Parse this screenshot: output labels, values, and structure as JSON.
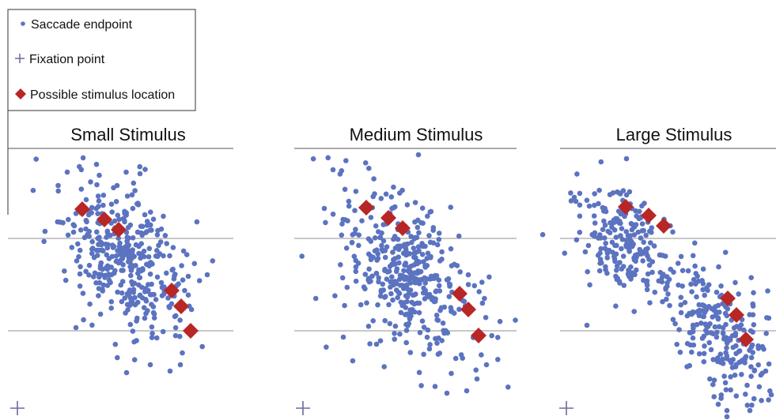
{
  "legend": {
    "items": [
      {
        "label": "Saccade endpoint",
        "icon": "dot-icon",
        "color": "#5b73c0"
      },
      {
        "label": "Fixation point",
        "icon": "plus-icon",
        "color": "#6b6b9b"
      },
      {
        "label": "Possible stimulus location",
        "icon": "diamond-icon",
        "color": "#b82626"
      }
    ]
  },
  "chart_data": [
    {
      "type": "scatter",
      "title": "Small Stimulus",
      "grid": "horizontal lines",
      "series": [
        {
          "role": "saccade-endpoint",
          "color": "#5b73c0",
          "cluster": {
            "mean": [
              157,
              325
            ],
            "sd": [
              38,
              48
            ],
            "corr": 0.45
          },
          "count": 380,
          "outliers": [
            [
              85,
              218
            ],
            [
              177,
              220
            ],
            [
              148,
              235
            ],
            [
              160,
              472
            ],
            [
              190,
              462
            ],
            [
              215,
              470
            ],
            [
              228,
              462
            ],
            [
              262,
              348
            ],
            [
              238,
              350
            ],
            [
              96,
              415
            ]
          ]
        },
        {
          "role": "stimulus-location",
          "color": "#b82626",
          "points": [
            [
              104,
              265
            ],
            [
              132,
              278
            ],
            [
              150,
              291
            ],
            [
              217,
              368
            ],
            [
              229,
              388
            ],
            [
              241,
              419
            ]
          ]
        },
        {
          "role": "fixation-point",
          "color": "#6b6b9b",
          "points": [
            [
              22,
              517
            ]
          ]
        }
      ]
    },
    {
      "type": "scatter",
      "title": "Medium Stimulus",
      "grid": "horizontal lines",
      "series": [
        {
          "role": "saccade-endpoint",
          "color": "#5b73c0",
          "cluster": {
            "mean": [
              518,
              350
            ],
            "sd": [
              45,
              55
            ],
            "corr": 0.5
          },
          "count": 400,
          "outliers": [
            [
              529,
              196
            ],
            [
              421,
              215
            ],
            [
              410,
              264
            ],
            [
              565,
              498
            ],
            [
              590,
              495
            ],
            [
              603,
              480
            ],
            [
              615,
              462
            ],
            [
              434,
              427
            ]
          ]
        },
        {
          "role": "stimulus-location",
          "color": "#b82626",
          "points": [
            [
              463,
              263
            ],
            [
              491,
              276
            ],
            [
              509,
              289
            ],
            [
              581,
              372
            ],
            [
              592,
              392
            ],
            [
              605,
              425
            ]
          ]
        },
        {
          "role": "fixation-point",
          "color": "#6b6b9b",
          "points": [
            [
              383,
              517
            ]
          ]
        }
      ]
    },
    {
      "type": "scatter",
      "title": "Large Stimulus",
      "grid": "horizontal lines",
      "series": [
        {
          "role": "saccade-endpoint",
          "color": "#5b73c0",
          "cluster": {
            "mean": [
              790,
              305
            ],
            "sd": [
              30,
              35
            ],
            "corr": 0.3
          },
          "count": 220
        },
        {
          "role": "saccade-endpoint",
          "color": "#5b73c0",
          "cluster": {
            "mean": [
              910,
              420
            ],
            "sd": [
              32,
              45
            ],
            "corr": 0.5
          },
          "count": 240,
          "outliers": [
            [
              792,
              201
            ],
            [
              728,
              255
            ],
            [
              742,
              412
            ],
            [
              948,
              520
            ],
            [
              975,
              500
            ],
            [
              968,
              470
            ]
          ]
        },
        {
          "role": "stimulus-location",
          "color": "#b82626",
          "points": [
            [
              791,
              262
            ],
            [
              820,
              273
            ],
            [
              839,
              286
            ],
            [
              920,
              378
            ],
            [
              931,
              399
            ],
            [
              943,
              430
            ]
          ]
        },
        {
          "role": "fixation-point",
          "color": "#6b6b9b",
          "points": [
            [
              716,
              517
            ]
          ]
        }
      ]
    }
  ]
}
